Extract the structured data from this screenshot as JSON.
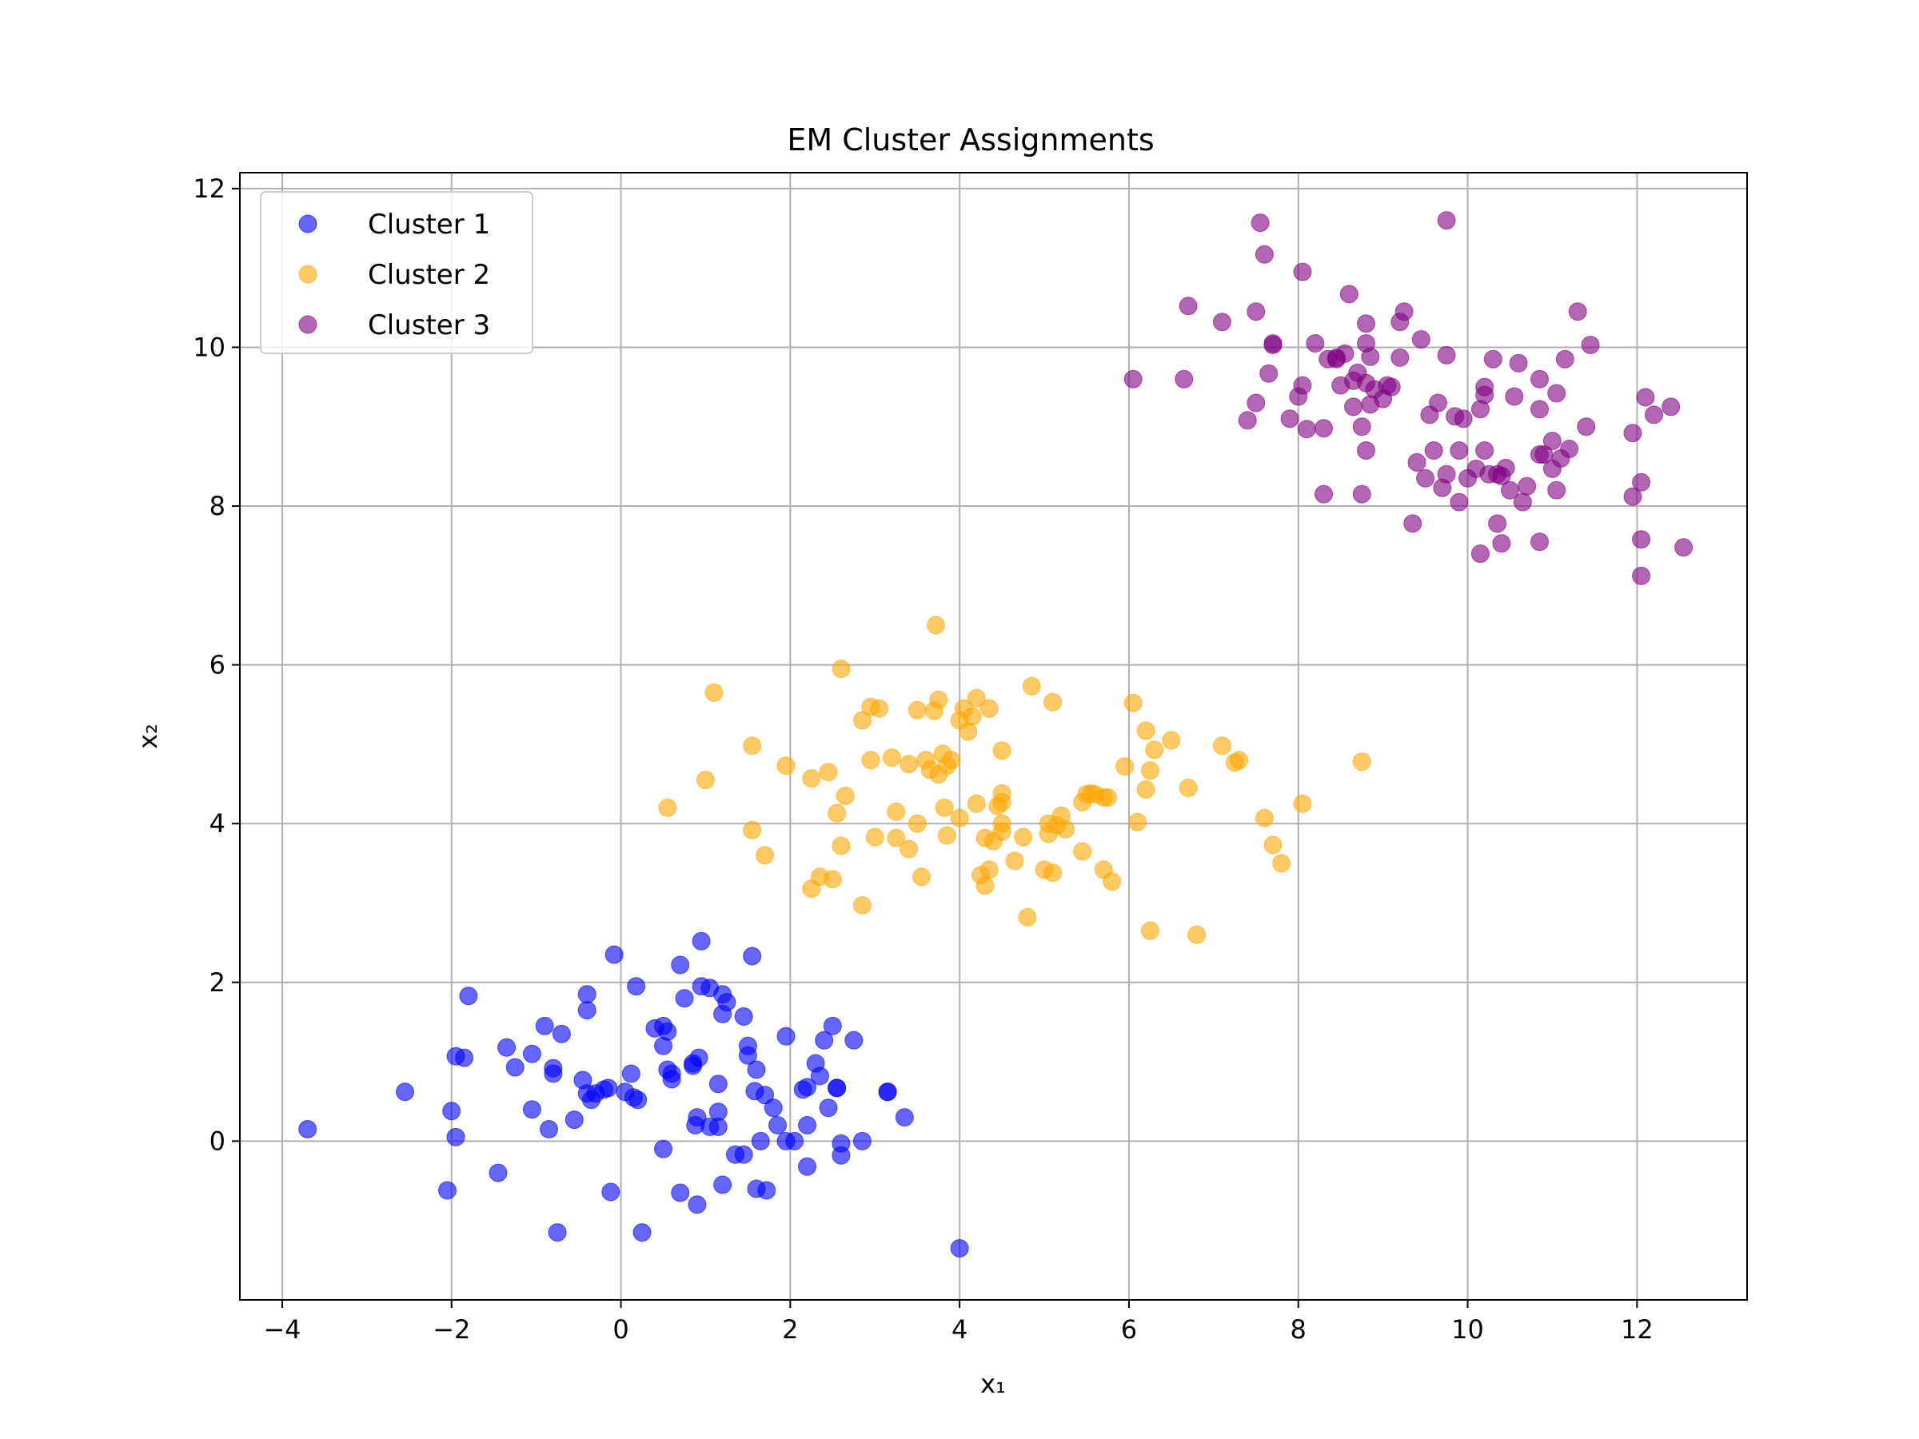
{
  "chart_data": {
    "type": "scatter",
    "title": "EM Cluster Assignments",
    "xlabel": "x₁",
    "ylabel": "x₂",
    "xlim": [
      -4.5,
      13.3
    ],
    "ylim": [
      -2.0,
      12.2
    ],
    "xticks": [
      -4,
      -2,
      0,
      2,
      4,
      6,
      8,
      10,
      12
    ],
    "yticks": [
      0,
      2,
      4,
      6,
      8,
      10,
      12
    ],
    "xtick_labels": [
      "−4",
      "−2",
      "0",
      "2",
      "4",
      "6",
      "8",
      "10",
      "12"
    ],
    "ytick_labels": [
      "0",
      "2",
      "4",
      "6",
      "8",
      "10",
      "12"
    ],
    "grid": true,
    "legend_position": "top-left",
    "series": [
      {
        "name": "Cluster 1",
        "color": "#0000ff",
        "points": [
          [
            -3.7,
            0.15
          ],
          [
            -2.55,
            0.62
          ],
          [
            -2.05,
            -0.62
          ],
          [
            -2.0,
            0.38
          ],
          [
            -1.95,
            1.07
          ],
          [
            -1.95,
            0.05
          ],
          [
            -1.85,
            1.05
          ],
          [
            -1.8,
            1.83
          ],
          [
            -1.35,
            1.18
          ],
          [
            -1.25,
            0.93
          ],
          [
            -1.45,
            -0.4
          ],
          [
            -1.05,
            1.1
          ],
          [
            -1.05,
            0.4
          ],
          [
            -0.9,
            1.45
          ],
          [
            -0.85,
            0.15
          ],
          [
            -0.8,
            0.92
          ],
          [
            -0.8,
            0.85
          ],
          [
            -0.75,
            -1.15
          ],
          [
            -0.7,
            1.35
          ],
          [
            -0.55,
            0.27
          ],
          [
            -0.45,
            0.77
          ],
          [
            -0.4,
            1.85
          ],
          [
            -0.4,
            1.65
          ],
          [
            -0.4,
            0.6
          ],
          [
            -0.35,
            0.52
          ],
          [
            -0.3,
            0.6
          ],
          [
            -0.2,
            0.65
          ],
          [
            -0.15,
            0.67
          ],
          [
            -0.12,
            -0.64
          ],
          [
            -0.08,
            2.35
          ],
          [
            0.05,
            0.62
          ],
          [
            0.12,
            0.85
          ],
          [
            0.15,
            0.55
          ],
          [
            0.18,
            1.95
          ],
          [
            0.2,
            0.52
          ],
          [
            0.25,
            -1.15
          ],
          [
            0.4,
            1.42
          ],
          [
            0.5,
            1.45
          ],
          [
            0.5,
            1.2
          ],
          [
            0.5,
            -0.1
          ],
          [
            0.55,
            0.9
          ],
          [
            0.55,
            1.38
          ],
          [
            0.6,
            0.85
          ],
          [
            0.6,
            0.78
          ],
          [
            0.7,
            2.22
          ],
          [
            0.7,
            -0.65
          ],
          [
            0.75,
            1.8
          ],
          [
            0.85,
            0.98
          ],
          [
            0.85,
            0.95
          ],
          [
            0.88,
            0.2
          ],
          [
            0.9,
            0.3
          ],
          [
            0.9,
            -0.8
          ],
          [
            0.92,
            1.05
          ],
          [
            0.95,
            1.95
          ],
          [
            0.95,
            2.52
          ],
          [
            1.05,
            0.18
          ],
          [
            1.05,
            1.93
          ],
          [
            1.15,
            0.37
          ],
          [
            1.15,
            0.18
          ],
          [
            1.15,
            0.72
          ],
          [
            1.2,
            1.6
          ],
          [
            1.2,
            1.85
          ],
          [
            1.2,
            -0.55
          ],
          [
            1.25,
            1.75
          ],
          [
            1.35,
            -0.17
          ],
          [
            1.45,
            1.57
          ],
          [
            1.45,
            -0.17
          ],
          [
            1.5,
            1.2
          ],
          [
            1.5,
            1.08
          ],
          [
            1.55,
            2.33
          ],
          [
            1.58,
            0.63
          ],
          [
            1.6,
            -0.6
          ],
          [
            1.6,
            0.9
          ],
          [
            1.65,
            0.0
          ],
          [
            1.7,
            0.58
          ],
          [
            1.72,
            -0.62
          ],
          [
            1.8,
            0.42
          ],
          [
            1.85,
            0.2
          ],
          [
            1.95,
            1.32
          ],
          [
            1.95,
            0.0
          ],
          [
            2.05,
            0.0
          ],
          [
            2.15,
            0.65
          ],
          [
            2.2,
            0.2
          ],
          [
            2.2,
            -0.32
          ],
          [
            2.2,
            0.68
          ],
          [
            2.3,
            0.98
          ],
          [
            2.35,
            0.82
          ],
          [
            2.4,
            1.27
          ],
          [
            2.45,
            0.42
          ],
          [
            2.5,
            1.45
          ],
          [
            2.55,
            0.67
          ],
          [
            2.55,
            0.67
          ],
          [
            2.6,
            -0.03
          ],
          [
            2.6,
            -0.18
          ],
          [
            2.75,
            1.27
          ],
          [
            2.85,
            0.0
          ],
          [
            3.15,
            0.62
          ],
          [
            3.15,
            0.62
          ],
          [
            3.35,
            0.3
          ],
          [
            4.0,
            -1.35
          ]
        ]
      },
      {
        "name": "Cluster 2",
        "color": "#ffa500",
        "points": [
          [
            0.55,
            4.2
          ],
          [
            1.0,
            4.55
          ],
          [
            1.1,
            5.65
          ],
          [
            1.55,
            4.98
          ],
          [
            1.55,
            3.92
          ],
          [
            1.7,
            3.6
          ],
          [
            1.95,
            4.73
          ],
          [
            2.25,
            4.57
          ],
          [
            2.25,
            3.18
          ],
          [
            2.35,
            3.33
          ],
          [
            2.45,
            4.65
          ],
          [
            2.5,
            3.3
          ],
          [
            2.55,
            4.13
          ],
          [
            2.6,
            5.95
          ],
          [
            2.6,
            3.72
          ],
          [
            2.65,
            4.35
          ],
          [
            2.85,
            2.97
          ],
          [
            2.85,
            5.3
          ],
          [
            2.95,
            5.47
          ],
          [
            2.95,
            4.8
          ],
          [
            3.0,
            3.83
          ],
          [
            3.05,
            5.45
          ],
          [
            3.2,
            4.83
          ],
          [
            3.25,
            4.15
          ],
          [
            3.25,
            3.82
          ],
          [
            3.4,
            4.75
          ],
          [
            3.4,
            3.68
          ],
          [
            3.5,
            5.43
          ],
          [
            3.5,
            4.0
          ],
          [
            3.55,
            3.33
          ],
          [
            3.6,
            4.8
          ],
          [
            3.65,
            4.68
          ],
          [
            3.7,
            5.42
          ],
          [
            3.72,
            6.5
          ],
          [
            3.75,
            4.62
          ],
          [
            3.75,
            5.56
          ],
          [
            3.8,
            4.88
          ],
          [
            3.82,
            4.2
          ],
          [
            3.85,
            3.85
          ],
          [
            3.85,
            4.73
          ],
          [
            3.9,
            4.8
          ],
          [
            4.0,
            5.3
          ],
          [
            4.0,
            4.07
          ],
          [
            4.05,
            5.45
          ],
          [
            4.1,
            5.16
          ],
          [
            4.15,
            5.35
          ],
          [
            4.2,
            5.58
          ],
          [
            4.2,
            4.25
          ],
          [
            4.25,
            3.35
          ],
          [
            4.3,
            3.22
          ],
          [
            4.3,
            3.82
          ],
          [
            4.35,
            3.42
          ],
          [
            4.35,
            5.45
          ],
          [
            4.4,
            3.78
          ],
          [
            4.45,
            4.22
          ],
          [
            4.5,
            4.92
          ],
          [
            4.5,
            4.38
          ],
          [
            4.5,
            4.0
          ],
          [
            4.5,
            4.27
          ],
          [
            4.5,
            3.9
          ],
          [
            4.65,
            3.53
          ],
          [
            4.75,
            3.83
          ],
          [
            4.8,
            2.82
          ],
          [
            4.85,
            5.73
          ],
          [
            5.0,
            3.42
          ],
          [
            5.05,
            3.87
          ],
          [
            5.05,
            4.0
          ],
          [
            5.1,
            3.38
          ],
          [
            5.1,
            5.53
          ],
          [
            5.15,
            3.98
          ],
          [
            5.2,
            4.1
          ],
          [
            5.25,
            3.93
          ],
          [
            5.45,
            3.65
          ],
          [
            5.45,
            4.27
          ],
          [
            5.5,
            4.37
          ],
          [
            5.55,
            4.38
          ],
          [
            5.6,
            4.37
          ],
          [
            5.7,
            4.33
          ],
          [
            5.7,
            3.42
          ],
          [
            5.75,
            4.33
          ],
          [
            5.8,
            3.27
          ],
          [
            5.95,
            4.72
          ],
          [
            6.05,
            5.52
          ],
          [
            6.1,
            4.02
          ],
          [
            6.2,
            4.43
          ],
          [
            6.2,
            5.17
          ],
          [
            6.25,
            2.65
          ],
          [
            6.25,
            4.67
          ],
          [
            6.3,
            4.93
          ],
          [
            6.5,
            5.05
          ],
          [
            6.7,
            4.45
          ],
          [
            6.8,
            2.6
          ],
          [
            7.1,
            4.98
          ],
          [
            7.25,
            4.77
          ],
          [
            7.3,
            4.8
          ],
          [
            7.6,
            4.07
          ],
          [
            7.7,
            3.73
          ],
          [
            7.8,
            3.5
          ],
          [
            8.05,
            4.25
          ],
          [
            8.75,
            4.78
          ]
        ]
      },
      {
        "name": "Cluster 3",
        "color": "#800080",
        "points": [
          [
            6.05,
            9.6
          ],
          [
            6.65,
            9.6
          ],
          [
            6.7,
            10.52
          ],
          [
            7.1,
            10.32
          ],
          [
            7.4,
            9.08
          ],
          [
            7.5,
            9.3
          ],
          [
            7.5,
            10.45
          ],
          [
            7.55,
            11.57
          ],
          [
            7.6,
            11.17
          ],
          [
            7.65,
            9.67
          ],
          [
            7.7,
            10.05
          ],
          [
            7.7,
            10.03
          ],
          [
            7.9,
            9.1
          ],
          [
            8.0,
            9.38
          ],
          [
            8.05,
            9.52
          ],
          [
            8.05,
            10.95
          ],
          [
            8.1,
            8.97
          ],
          [
            8.2,
            10.05
          ],
          [
            8.3,
            8.15
          ],
          [
            8.3,
            8.98
          ],
          [
            8.35,
            9.85
          ],
          [
            8.45,
            9.85
          ],
          [
            8.45,
            9.87
          ],
          [
            8.5,
            9.52
          ],
          [
            8.55,
            9.92
          ],
          [
            8.6,
            10.67
          ],
          [
            8.65,
            9.58
          ],
          [
            8.65,
            9.25
          ],
          [
            8.7,
            9.68
          ],
          [
            8.75,
            8.15
          ],
          [
            8.75,
            9.0
          ],
          [
            8.8,
            8.7
          ],
          [
            8.8,
            9.55
          ],
          [
            8.8,
            10.3
          ],
          [
            8.8,
            10.05
          ],
          [
            8.85,
            9.88
          ],
          [
            8.85,
            9.28
          ],
          [
            8.9,
            9.47
          ],
          [
            9.0,
            9.35
          ],
          [
            9.05,
            9.52
          ],
          [
            9.1,
            9.5
          ],
          [
            9.2,
            9.87
          ],
          [
            9.2,
            10.32
          ],
          [
            9.25,
            10.45
          ],
          [
            9.35,
            7.78
          ],
          [
            9.4,
            8.55
          ],
          [
            9.45,
            10.1
          ],
          [
            9.5,
            8.35
          ],
          [
            9.55,
            9.15
          ],
          [
            9.6,
            8.7
          ],
          [
            9.65,
            9.3
          ],
          [
            9.7,
            8.23
          ],
          [
            9.75,
            8.4
          ],
          [
            9.75,
            9.9
          ],
          [
            9.75,
            11.6
          ],
          [
            9.85,
            9.13
          ],
          [
            9.9,
            8.05
          ],
          [
            9.9,
            8.7
          ],
          [
            9.95,
            9.1
          ],
          [
            10.0,
            8.35
          ],
          [
            10.1,
            8.47
          ],
          [
            10.15,
            7.4
          ],
          [
            10.15,
            9.22
          ],
          [
            10.2,
            8.7
          ],
          [
            10.2,
            9.4
          ],
          [
            10.2,
            9.5
          ],
          [
            10.25,
            8.4
          ],
          [
            10.3,
            9.85
          ],
          [
            10.35,
            7.78
          ],
          [
            10.35,
            8.4
          ],
          [
            10.4,
            8.38
          ],
          [
            10.4,
            7.53
          ],
          [
            10.45,
            8.48
          ],
          [
            10.5,
            8.2
          ],
          [
            10.55,
            9.38
          ],
          [
            10.6,
            9.8
          ],
          [
            10.65,
            8.05
          ],
          [
            10.7,
            8.25
          ],
          [
            10.85,
            7.55
          ],
          [
            10.85,
            9.6
          ],
          [
            10.85,
            9.22
          ],
          [
            10.85,
            8.65
          ],
          [
            10.9,
            8.65
          ],
          [
            11.0,
            8.47
          ],
          [
            11.0,
            8.82
          ],
          [
            11.05,
            8.2
          ],
          [
            11.05,
            9.42
          ],
          [
            11.1,
            8.6
          ],
          [
            11.15,
            9.85
          ],
          [
            11.2,
            8.72
          ],
          [
            11.3,
            10.45
          ],
          [
            11.4,
            9.0
          ],
          [
            11.45,
            10.03
          ],
          [
            11.95,
            8.92
          ],
          [
            11.95,
            8.12
          ],
          [
            12.05,
            7.58
          ],
          [
            12.05,
            8.3
          ],
          [
            12.05,
            7.12
          ],
          [
            12.1,
            9.37
          ],
          [
            12.2,
            9.15
          ],
          [
            12.4,
            9.25
          ],
          [
            12.55,
            7.48
          ]
        ]
      }
    ]
  }
}
